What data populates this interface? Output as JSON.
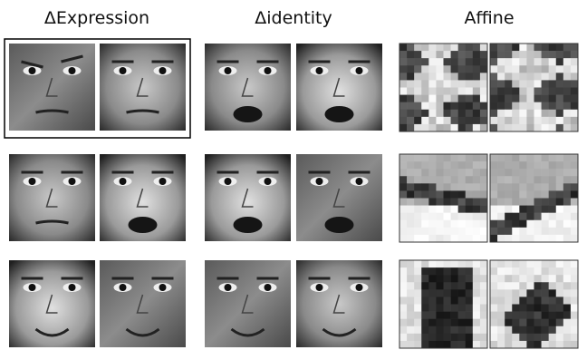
{
  "columns": [
    {
      "title": "ΔExpression"
    },
    {
      "title": "Δidentity"
    },
    {
      "title": "Affine"
    }
  ]
}
